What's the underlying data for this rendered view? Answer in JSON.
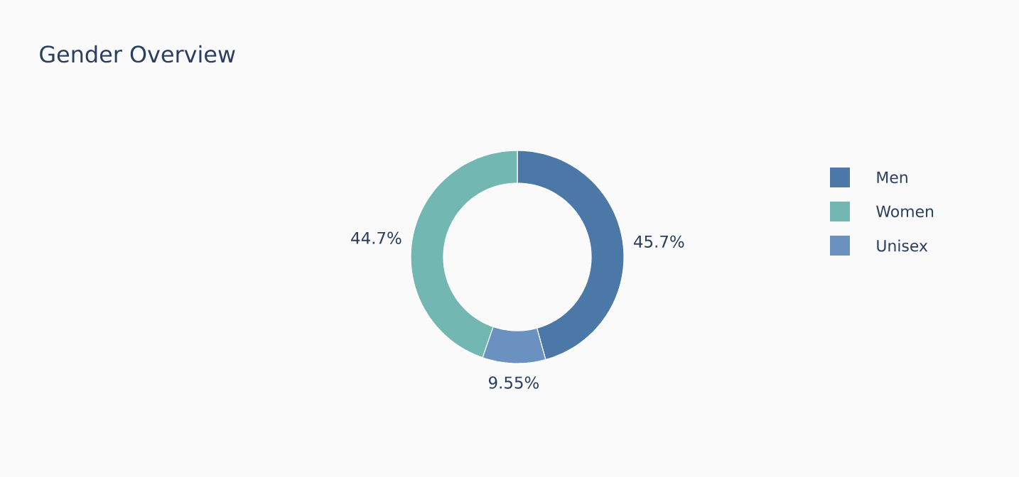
{
  "chart_data": {
    "type": "donut",
    "title": "Gender Overview",
    "categories": [
      "Men",
      "Women",
      "Unisex"
    ],
    "values": [
      45.7,
      44.7,
      9.55
    ],
    "value_labels": [
      "45.7%",
      "44.7%",
      "9.55%"
    ],
    "colors": [
      "#4c78a8",
      "#72b7b2",
      "#6a91c0"
    ],
    "legend": "right"
  }
}
